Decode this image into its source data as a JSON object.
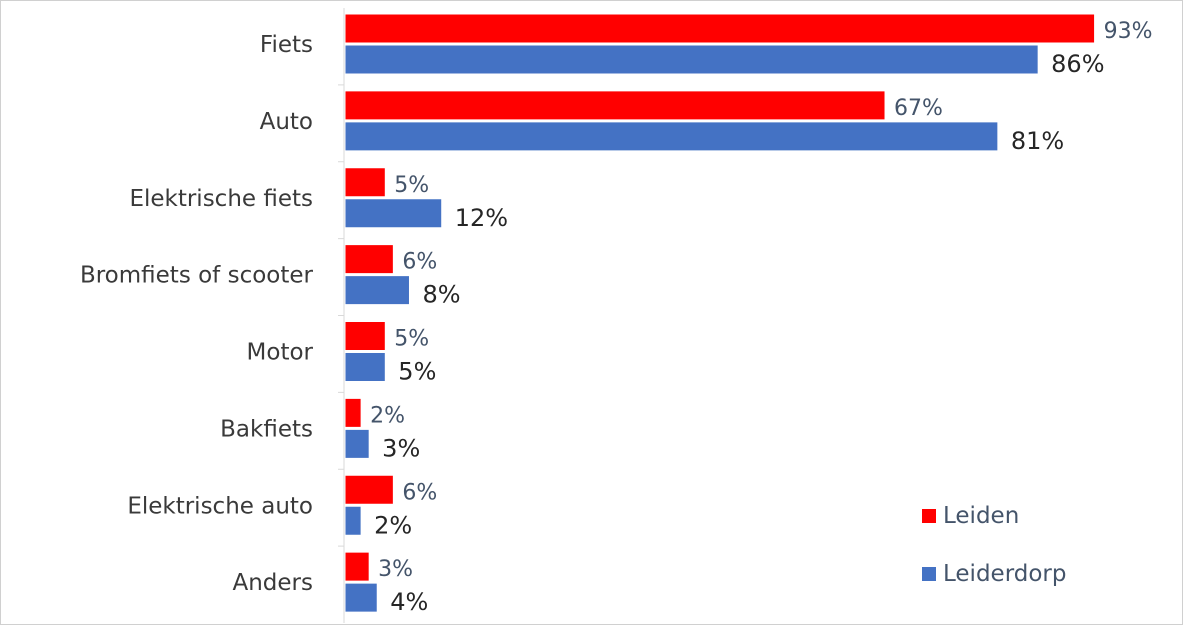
{
  "chart_data": {
    "type": "bar",
    "orientation": "horizontal",
    "categories": [
      "Fiets",
      "Auto",
      "Elektrische fiets",
      "Bromfiets of scooter",
      "Motor",
      "Bakfiets",
      "Elektrische auto",
      "Anders"
    ],
    "series": [
      {
        "name": "Leiden",
        "values": [
          93,
          67,
          5,
          6,
          5,
          2,
          6,
          3
        ],
        "color": "#ff0000"
      },
      {
        "name": "Leiderdorp",
        "values": [
          86,
          81,
          12,
          8,
          5,
          3,
          2,
          4
        ],
        "color": "#4472c4"
      }
    ],
    "value_labels": {
      "Leiden": [
        "93%",
        "67%",
        "5%",
        "6%",
        "5%",
        "2%",
        "6%",
        "3%"
      ],
      "Leiderdorp": [
        "86%",
        "81%",
        "12%",
        "8%",
        "5%",
        "3%",
        "2%",
        "4%"
      ]
    },
    "xlim": [
      0,
      100
    ],
    "grid": false,
    "legend_position": "bottom-right",
    "title": "",
    "xlabel": "",
    "ylabel": ""
  }
}
